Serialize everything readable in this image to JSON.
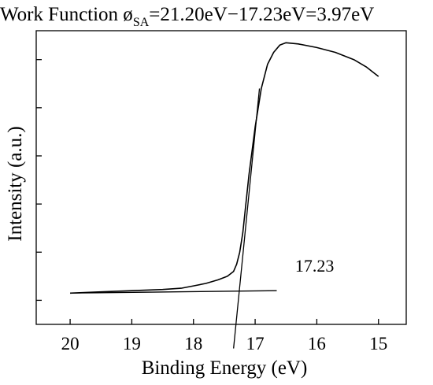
{
  "chart_data": {
    "type": "line",
    "title": {
      "prefix": "Work Function ø",
      "subscript": "SA",
      "suffix": "=21.20eV−17.23eV=3.97eV"
    },
    "xlabel": "Binding Energy (eV)",
    "ylabel": "Intensity (a.u.)",
    "x_reversed": true,
    "xlim": [
      20.55,
      14.55
    ],
    "ylim": [
      0,
      1.22
    ],
    "xticks": [
      "20",
      "19",
      "18",
      "17",
      "16",
      "15"
    ],
    "yticks_count": 6,
    "grid": false,
    "legend": "none",
    "series": [
      {
        "x": [
          20.0,
          19.5,
          19.0,
          18.5,
          18.2,
          18.0,
          17.8,
          17.6,
          17.45,
          17.35,
          17.3,
          17.25,
          17.2,
          17.15,
          17.1,
          17.0,
          16.9,
          16.8,
          16.7,
          16.6,
          16.5,
          16.3,
          16.0,
          15.7,
          15.4,
          15.2,
          15.1,
          15.0
        ],
        "y": [
          0.13,
          0.135,
          0.14,
          0.145,
          0.15,
          0.16,
          0.17,
          0.185,
          0.2,
          0.22,
          0.25,
          0.3,
          0.38,
          0.5,
          0.62,
          0.82,
          0.98,
          1.08,
          1.13,
          1.16,
          1.17,
          1.165,
          1.15,
          1.13,
          1.1,
          1.07,
          1.05,
          1.03
        ]
      }
    ],
    "baseline_line": {
      "x": [
        20.0,
        16.65
      ],
      "y": [
        0.13,
        0.14
      ]
    },
    "tangent_line": {
      "x": [
        17.35,
        16.93
      ],
      "y": [
        -0.1,
        0.98
      ]
    },
    "annotation": {
      "text": "17.23",
      "x": 16.3,
      "y": 0.2
    },
    "colors": {
      "line": "#000000",
      "axis": "#000000"
    }
  }
}
